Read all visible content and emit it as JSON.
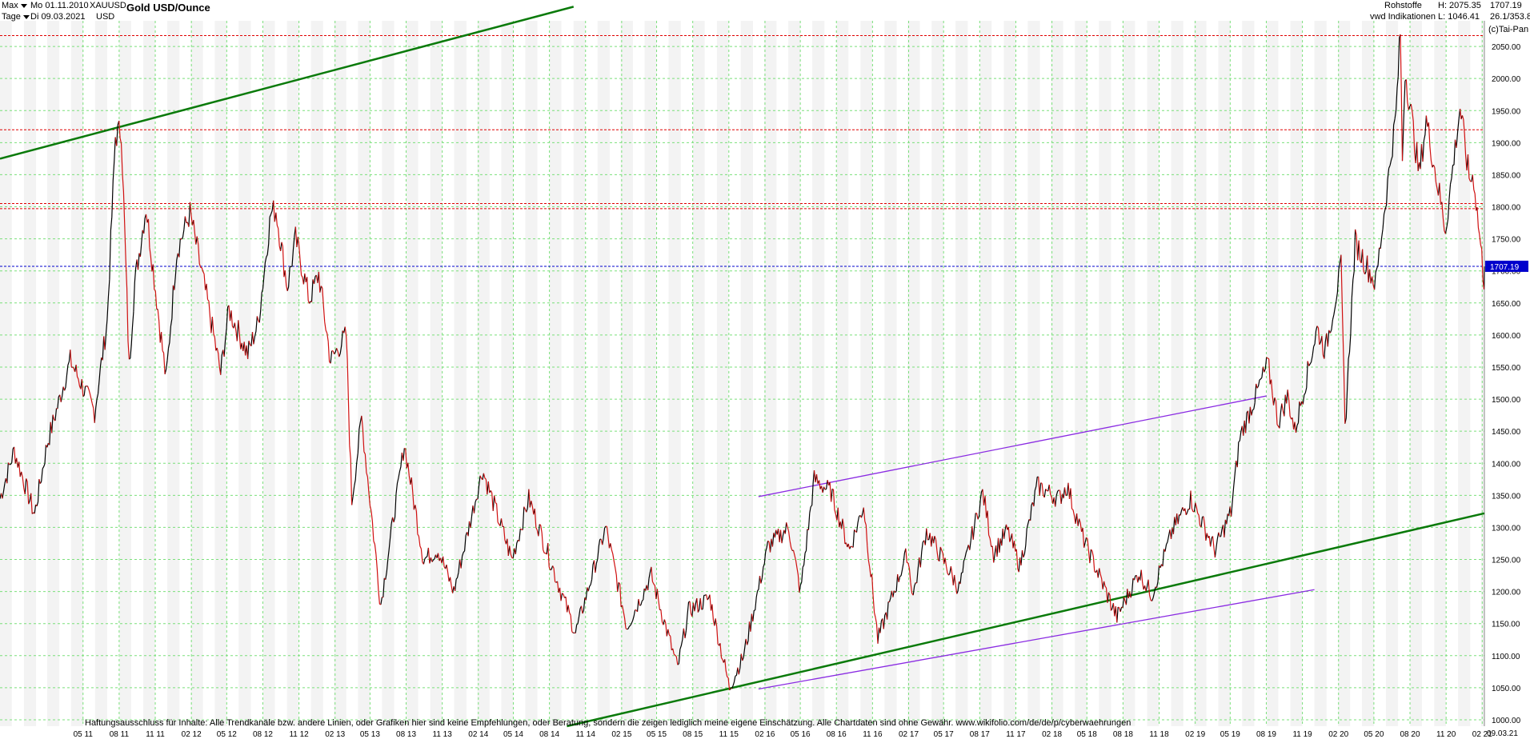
{
  "header": {
    "range_label": "Max",
    "interval_label": "Tage",
    "date_from": "Mo 01.11.2010",
    "date_to": "Di 09.03.2021",
    "symbol": "XAUUSD",
    "currency": "USD",
    "title": "Gold USD/Ounce",
    "category": "Rohstoffe",
    "source": "vwd Indikationen",
    "high_label": "H: 2075.35",
    "low_label": "L: 1046.41",
    "last_value": "1707.19",
    "last_date": "26.1/353.8",
    "copyright": "(c)Tai-Pan"
  },
  "footer": {
    "disclaimer": "Haftungsausschluss für Inhalte: Alle Trendkanäle bzw. andere Linien, oder Grafiken hier sind keine Empfehlungen, oder Beratung, sondern die zeigen lediglich meine eigene Einschätzung. Alle Chartdaten sind ohne Gewähr.  www.wikifolio.com/de/de/p/cyberwaehrungen",
    "end_date": "09.03.21"
  },
  "colors": {
    "grid": "#7be07b",
    "price": "#000000",
    "down": "#d01010",
    "trend_green": "#0a7a0a",
    "trend_purple": "#8a2be2",
    "trend_cyan": "#00c8f0",
    "trend_magenta": "#e040e0",
    "resistance_red": "#e00000",
    "last_price_blue": "#0000cc"
  },
  "chart_data": {
    "type": "line",
    "title": "Gold USD/Ounce",
    "xlabel": "",
    "ylabel": "",
    "ylim": [
      990,
      2090
    ],
    "y_ticks": [
      1000,
      1050,
      1100,
      1150,
      1200,
      1250,
      1300,
      1350,
      1400,
      1450,
      1500,
      1550,
      1600,
      1650,
      1700,
      1750,
      1800,
      1850,
      1900,
      1950,
      2000,
      2050
    ],
    "x_tick_labels": [
      "05 11",
      "08 11",
      "11 11",
      "02 12",
      "05 12",
      "08 12",
      "11 12",
      "02 13",
      "05 13",
      "08 13",
      "11 13",
      "02 14",
      "05 14",
      "08 14",
      "11 14",
      "02 15",
      "05 15",
      "08 15",
      "11 15",
      "02 16",
      "05 16",
      "08 16",
      "11 16",
      "02 17",
      "05 17",
      "08 17",
      "11 17",
      "02 18",
      "05 18",
      "08 18",
      "11 18",
      "02 19",
      "05 19",
      "08 19",
      "11 19",
      "02 20",
      "05 20",
      "08 20",
      "11 20",
      "02 21"
    ],
    "x_start": "2010-11-01",
    "x_end": "2021-03-09",
    "grid": true,
    "series": [
      {
        "name": "XAUUSD",
        "points": [
          [
            "2010-11-01",
            1345
          ],
          [
            "2010-12-07",
            1420
          ],
          [
            "2011-01-28",
            1320
          ],
          [
            "2011-03-01",
            1430
          ],
          [
            "2011-04-29",
            1560
          ],
          [
            "2011-06-30",
            1480
          ],
          [
            "2011-08-01",
            1620
          ],
          [
            "2011-08-22",
            1910
          ],
          [
            "2011-09-06",
            1920
          ],
          [
            "2011-09-26",
            1550
          ],
          [
            "2011-10-10",
            1680
          ],
          [
            "2011-11-08",
            1800
          ],
          [
            "2011-12-29",
            1530
          ],
          [
            "2012-01-25",
            1730
          ],
          [
            "2012-02-28",
            1790
          ],
          [
            "2012-04-16",
            1640
          ],
          [
            "2012-05-16",
            1540
          ],
          [
            "2012-06-06",
            1640
          ],
          [
            "2012-07-24",
            1570
          ],
          [
            "2012-08-20",
            1620
          ],
          [
            "2012-09-21",
            1790
          ],
          [
            "2012-10-04",
            1795
          ],
          [
            "2012-11-02",
            1675
          ],
          [
            "2012-11-23",
            1750
          ],
          [
            "2012-12-28",
            1655
          ],
          [
            "2013-01-21",
            1695
          ],
          [
            "2013-02-20",
            1560
          ],
          [
            "2013-04-01",
            1600
          ],
          [
            "2013-04-15",
            1340
          ],
          [
            "2013-05-10",
            1470
          ],
          [
            "2013-06-28",
            1180
          ],
          [
            "2013-08-27",
            1430
          ],
          [
            "2013-10-15",
            1250
          ],
          [
            "2013-11-21",
            1265
          ],
          [
            "2013-12-31",
            1200
          ],
          [
            "2014-03-14",
            1390
          ],
          [
            "2014-05-28",
            1250
          ],
          [
            "2014-07-10",
            1345
          ],
          [
            "2014-10-06",
            1190
          ],
          [
            "2014-11-06",
            1135
          ],
          [
            "2015-01-22",
            1300
          ],
          [
            "2015-03-17",
            1145
          ],
          [
            "2015-05-18",
            1225
          ],
          [
            "2015-07-24",
            1080
          ],
          [
            "2015-08-21",
            1170
          ],
          [
            "2015-10-14",
            1190
          ],
          [
            "2015-12-03",
            1050
          ],
          [
            "2016-01-08",
            1100
          ],
          [
            "2016-03-10",
            1270
          ],
          [
            "2016-05-02",
            1300
          ],
          [
            "2016-06-01",
            1200
          ],
          [
            "2016-07-06",
            1375
          ],
          [
            "2016-08-18",
            1355
          ],
          [
            "2016-10-04",
            1265
          ],
          [
            "2016-11-09",
            1335
          ],
          [
            "2016-12-15",
            1125
          ],
          [
            "2017-02-27",
            1260
          ],
          [
            "2017-03-15",
            1195
          ],
          [
            "2017-04-18",
            1295
          ],
          [
            "2017-07-10",
            1205
          ],
          [
            "2017-09-08",
            1355
          ],
          [
            "2017-10-06",
            1260
          ],
          [
            "2017-11-10",
            1295
          ],
          [
            "2017-12-12",
            1240
          ],
          [
            "2018-01-25",
            1365
          ],
          [
            "2018-03-21",
            1345
          ],
          [
            "2018-04-11",
            1365
          ],
          [
            "2018-05-21",
            1285
          ],
          [
            "2018-08-16",
            1160
          ],
          [
            "2018-10-11",
            1230
          ],
          [
            "2018-11-13",
            1195
          ],
          [
            "2019-01-04",
            1295
          ],
          [
            "2019-02-20",
            1345
          ],
          [
            "2019-04-23",
            1265
          ],
          [
            "2019-06-03",
            1325
          ],
          [
            "2019-06-25",
            1440
          ],
          [
            "2019-09-04",
            1555
          ],
          [
            "2019-10-01",
            1465
          ],
          [
            "2019-10-25",
            1505
          ],
          [
            "2019-11-12",
            1450
          ],
          [
            "2020-01-08",
            1610
          ],
          [
            "2020-01-29",
            1575
          ],
          [
            "2020-03-09",
            1705
          ],
          [
            "2020-03-19",
            1455
          ],
          [
            "2020-04-14",
            1745
          ],
          [
            "2020-06-05",
            1680
          ],
          [
            "2020-07-27",
            1945
          ],
          [
            "2020-08-07",
            2075
          ],
          [
            "2020-08-12",
            1875
          ],
          [
            "2020-08-19",
            2015
          ],
          [
            "2020-09-24",
            1850
          ],
          [
            "2020-10-12",
            1935
          ],
          [
            "2020-11-30",
            1765
          ],
          [
            "2021-01-06",
            1955
          ],
          [
            "2021-01-29",
            1845
          ],
          [
            "2021-02-10",
            1845
          ],
          [
            "2021-03-08",
            1685
          ],
          [
            "2021-03-09",
            1707
          ]
        ]
      }
    ],
    "last_price": 1707.19,
    "annotations": {
      "horizontal_levels_red": [
        1920,
        1805,
        1797,
        2067
      ],
      "horizontal_level_blue": 1707.19,
      "lines_green_thick": [
        [
          [
            "2010-11-01",
            1875
          ],
          [
            "2014-11-01",
            2112
          ]
        ],
        [
          [
            "2014-10-15",
            990
          ],
          [
            "2021-03-09",
            1322
          ]
        ]
      ],
      "lines_purple": [
        [
          [
            "2016-02-15",
            1348
          ],
          [
            "2019-09-01",
            1505
          ]
        ],
        [
          [
            "2016-02-15",
            1048
          ],
          [
            "2020-01-01",
            1203
          ]
        ]
      ]
    }
  }
}
